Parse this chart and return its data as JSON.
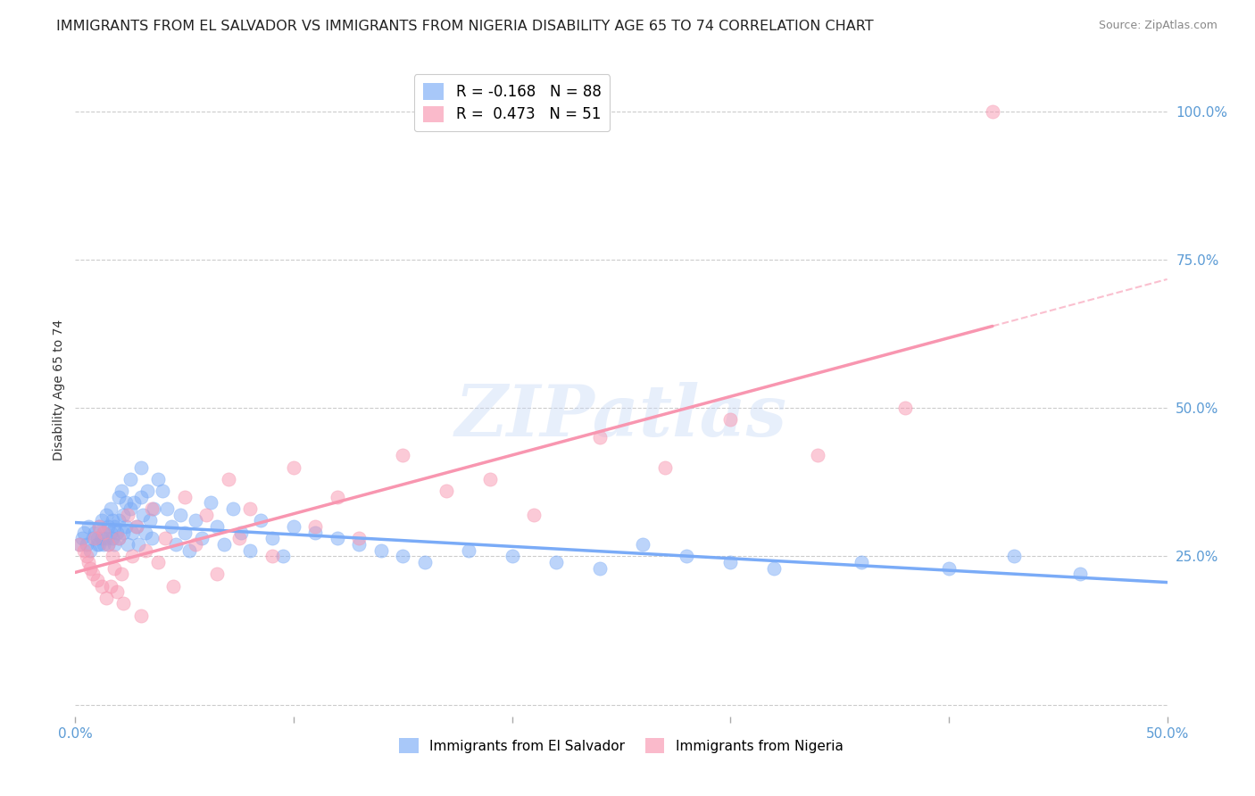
{
  "title": "IMMIGRANTS FROM EL SALVADOR VS IMMIGRANTS FROM NIGERIA DISABILITY AGE 65 TO 74 CORRELATION CHART",
  "source": "Source: ZipAtlas.com",
  "ylabel": "Disability Age 65 to 74",
  "xlim": [
    0.0,
    0.5
  ],
  "ylim": [
    -0.02,
    1.08
  ],
  "yticks": [
    0.0,
    0.25,
    0.5,
    0.75,
    1.0
  ],
  "ytick_labels": [
    "",
    "25.0%",
    "50.0%",
    "75.0%",
    "100.0%"
  ],
  "xticks": [
    0.0,
    0.1,
    0.2,
    0.3,
    0.4,
    0.5
  ],
  "xtick_labels": [
    "0.0%",
    "",
    "",
    "",
    "",
    "50.0%"
  ],
  "r_salvador": -0.168,
  "n_salvador": 88,
  "r_nigeria": 0.473,
  "n_nigeria": 51,
  "color_salvador": "#7aabf7",
  "color_nigeria": "#f896b0",
  "legend_label_salvador": "Immigrants from El Salvador",
  "legend_label_nigeria": "Immigrants from Nigeria",
  "watermark": "ZIPatlas",
  "background_color": "#ffffff",
  "grid_color": "#cccccc",
  "title_fontsize": 11.5,
  "axis_label_fontsize": 10,
  "tick_fontsize": 11,
  "salvador_x": [
    0.002,
    0.003,
    0.004,
    0.005,
    0.006,
    0.007,
    0.008,
    0.009,
    0.01,
    0.01,
    0.011,
    0.011,
    0.012,
    0.012,
    0.013,
    0.013,
    0.014,
    0.014,
    0.015,
    0.015,
    0.016,
    0.016,
    0.017,
    0.017,
    0.018,
    0.018,
    0.019,
    0.02,
    0.02,
    0.02,
    0.021,
    0.022,
    0.022,
    0.023,
    0.023,
    0.024,
    0.025,
    0.025,
    0.026,
    0.027,
    0.028,
    0.029,
    0.03,
    0.03,
    0.031,
    0.032,
    0.033,
    0.034,
    0.035,
    0.036,
    0.038,
    0.04,
    0.042,
    0.044,
    0.046,
    0.048,
    0.05,
    0.052,
    0.055,
    0.058,
    0.062,
    0.065,
    0.068,
    0.072,
    0.076,
    0.08,
    0.085,
    0.09,
    0.095,
    0.1,
    0.11,
    0.12,
    0.13,
    0.14,
    0.15,
    0.16,
    0.18,
    0.2,
    0.22,
    0.24,
    0.26,
    0.28,
    0.3,
    0.32,
    0.36,
    0.4,
    0.43,
    0.46
  ],
  "salvador_y": [
    0.27,
    0.28,
    0.29,
    0.27,
    0.3,
    0.26,
    0.28,
    0.29,
    0.27,
    0.28,
    0.3,
    0.27,
    0.31,
    0.28,
    0.29,
    0.27,
    0.32,
    0.28,
    0.3,
    0.27,
    0.33,
    0.29,
    0.31,
    0.28,
    0.3,
    0.27,
    0.29,
    0.35,
    0.31,
    0.28,
    0.36,
    0.32,
    0.29,
    0.34,
    0.3,
    0.27,
    0.38,
    0.33,
    0.29,
    0.34,
    0.3,
    0.27,
    0.4,
    0.35,
    0.32,
    0.29,
    0.36,
    0.31,
    0.28,
    0.33,
    0.38,
    0.36,
    0.33,
    0.3,
    0.27,
    0.32,
    0.29,
    0.26,
    0.31,
    0.28,
    0.34,
    0.3,
    0.27,
    0.33,
    0.29,
    0.26,
    0.31,
    0.28,
    0.25,
    0.3,
    0.29,
    0.28,
    0.27,
    0.26,
    0.25,
    0.24,
    0.26,
    0.25,
    0.24,
    0.23,
    0.27,
    0.25,
    0.24,
    0.23,
    0.24,
    0.23,
    0.25,
    0.22
  ],
  "nigeria_x": [
    0.002,
    0.004,
    0.005,
    0.006,
    0.007,
    0.008,
    0.009,
    0.01,
    0.011,
    0.012,
    0.013,
    0.014,
    0.015,
    0.016,
    0.017,
    0.018,
    0.019,
    0.02,
    0.021,
    0.022,
    0.024,
    0.026,
    0.028,
    0.03,
    0.032,
    0.035,
    0.038,
    0.041,
    0.045,
    0.05,
    0.055,
    0.06,
    0.065,
    0.07,
    0.075,
    0.08,
    0.09,
    0.1,
    0.11,
    0.12,
    0.13,
    0.15,
    0.17,
    0.19,
    0.21,
    0.24,
    0.27,
    0.3,
    0.34,
    0.38,
    0.42
  ],
  "nigeria_y": [
    0.27,
    0.26,
    0.25,
    0.24,
    0.23,
    0.22,
    0.28,
    0.21,
    0.3,
    0.2,
    0.29,
    0.18,
    0.27,
    0.2,
    0.25,
    0.23,
    0.19,
    0.28,
    0.22,
    0.17,
    0.32,
    0.25,
    0.3,
    0.15,
    0.26,
    0.33,
    0.24,
    0.28,
    0.2,
    0.35,
    0.27,
    0.32,
    0.22,
    0.38,
    0.28,
    0.33,
    0.25,
    0.4,
    0.3,
    0.35,
    0.28,
    0.42,
    0.36,
    0.38,
    0.32,
    0.45,
    0.4,
    0.48,
    0.42,
    0.5,
    1.0
  ],
  "nigeria_line_x_start": 0.0,
  "nigeria_line_x_solid_end": 0.42,
  "nigeria_line_x_dash_end": 0.5,
  "salvador_line_x_start": 0.0,
  "salvador_line_x_end": 0.5
}
